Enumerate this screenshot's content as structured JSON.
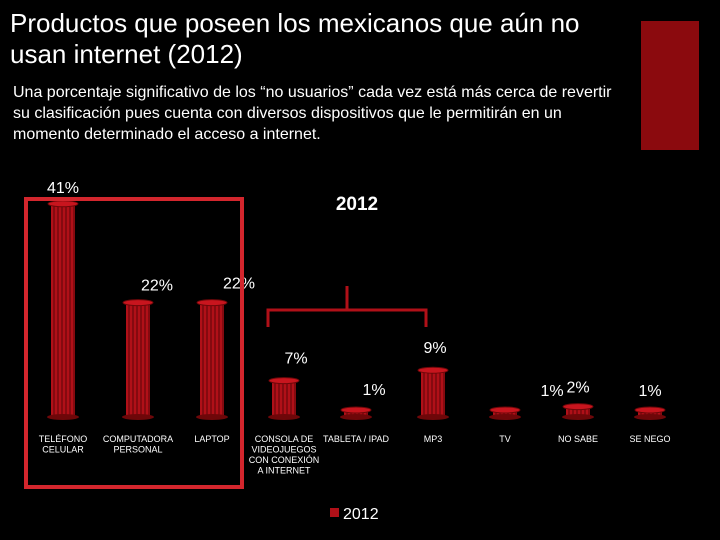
{
  "slide": {
    "title": "Productos que poseen los mexicanos que aún no usan internet (2012)",
    "subtitle": "Una porcentaje significativo de los “no usuarios” cada vez está más cerca de revertir su clasificación pues cuenta con diversos dispositivos que le permitirán en un momento determinado el acceso a internet.",
    "accent_color": "#8b0a0e"
  },
  "chart_data": {
    "type": "bar",
    "title": "2012",
    "categories": [
      [
        "TELÉFONO",
        "CELULAR"
      ],
      [
        "COMPUTADORA",
        "PERSONAL"
      ],
      [
        "LAPTOP"
      ],
      [
        "CONSOLA DE",
        "VIDEOJUEGOS",
        "CON CONEXIÓN",
        "A INTERNET"
      ],
      [
        "TABLETA / IPAD"
      ],
      [
        "MP3"
      ],
      [
        "TV"
      ],
      [
        "NO SABE"
      ],
      [
        "SE NEGO"
      ]
    ],
    "values": [
      41,
      22,
      22,
      7,
      1,
      9,
      1,
      2,
      1
    ],
    "labels": [
      "41%",
      "22%",
      "22%",
      "7%",
      "1%",
      "9%",
      "1%",
      "2%",
      "1%"
    ],
    "series_name": "2012",
    "bar_color": "#b01018",
    "highlight_color": "#d3262d",
    "legend": "bottom"
  }
}
